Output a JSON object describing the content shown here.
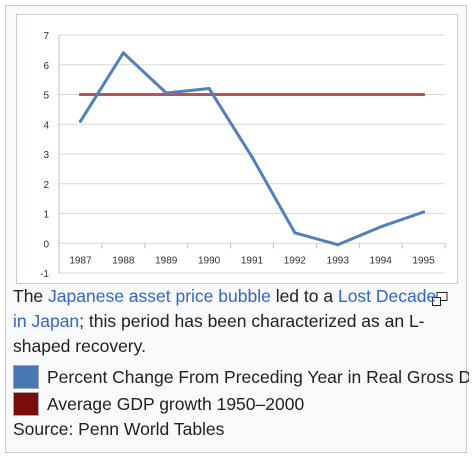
{
  "chart_data": {
    "type": "line",
    "x": [
      "1987",
      "1988",
      "1989",
      "1990",
      "1991",
      "1992",
      "1993",
      "1994",
      "1995"
    ],
    "series": [
      {
        "name": "Percent Change From Preceding Year in Real Gross Domestic Product",
        "color": "#4f81bd",
        "values": [
          4.1,
          6.4,
          5.05,
          5.2,
          2.9,
          0.35,
          -0.05,
          0.55,
          1.05
        ]
      },
      {
        "name": "Average GDP growth 1950–2000",
        "color": "#c0504d",
        "values": [
          5.0,
          5.0,
          5.0,
          5.0,
          5.0,
          5.0,
          5.0,
          5.0,
          5.0
        ]
      }
    ],
    "ylim": [
      -1,
      7
    ],
    "yticks": [
      "-1",
      "0",
      "1",
      "2",
      "3",
      "4",
      "5",
      "6",
      "7"
    ],
    "grid": "horizontal",
    "title": "",
    "xlabel": "",
    "ylabel": ""
  },
  "caption": {
    "text1": "The ",
    "link1": "Japanese asset price bubble",
    "text2": " led to a ",
    "link2": "Lost Decade in Japan",
    "text3": "; this period has been characterized as an L-shaped recovery."
  },
  "legend": [
    {
      "label": "Percent Change From Preceding Year in Real Gross Domestic Product",
      "color": "#4778b3"
    },
    {
      "label": "Average GDP growth 1950–2000",
      "color": "#7b0c0c"
    }
  ],
  "source": "Source: Penn World Tables",
  "icons": {
    "enlarge": "enlarge-icon"
  }
}
